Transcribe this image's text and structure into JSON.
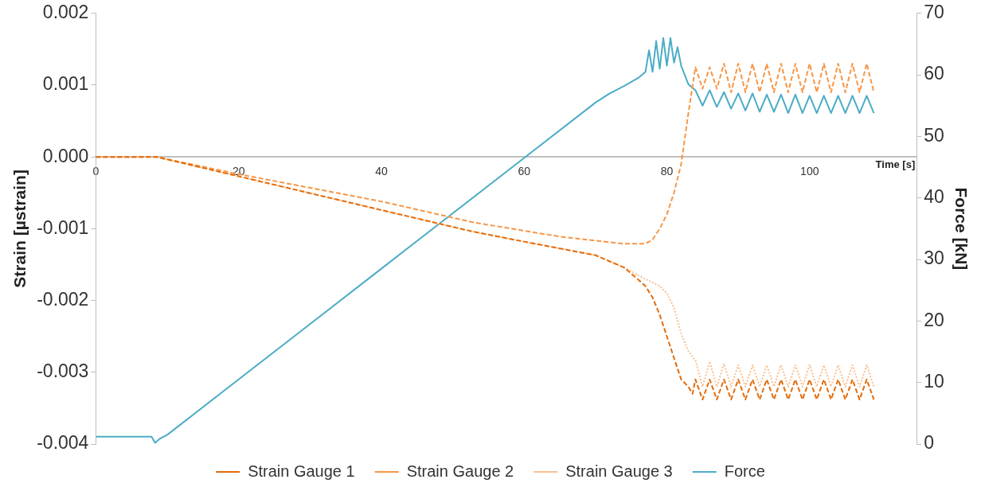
{
  "chart_data": {
    "type": "line",
    "xlabel": "Time [s]",
    "ylabel": "Strain [µstrain]",
    "y2label": "Force [kN]",
    "xlim": [
      0,
      115
    ],
    "xticks": [
      0,
      20,
      40,
      60,
      80,
      100
    ],
    "ylim": [
      -0.004,
      0.002
    ],
    "yticks": [
      -0.004,
      -0.003,
      -0.002,
      -0.001,
      {
        "value": 0,
        "label": "0.000"
      },
      0.001,
      0.002
    ],
    "y2lim": [
      0,
      70
    ],
    "y2ticks": [
      0,
      10,
      20,
      30,
      40,
      50,
      60,
      70
    ],
    "legend": "bottom",
    "grid": false,
    "marker": "none",
    "series": [
      {
        "name": "Strain Gauge 1",
        "color": "#e46c0a",
        "line_style": "dashed",
        "x": [
          0,
          7.5,
          8.5,
          20,
          40,
          52.8,
          60,
          70,
          74,
          76,
          77,
          78,
          79,
          80,
          81,
          82,
          83,
          83.6,
          84,
          85,
          86,
          87,
          88,
          89,
          90,
          91,
          92,
          93,
          94,
          95,
          96,
          97,
          98,
          99,
          100,
          101,
          102,
          103,
          104,
          105,
          106,
          107,
          108,
          109
        ],
        "values": [
          0,
          0,
          0,
          -0.00027,
          -0.00074,
          -0.00104,
          -0.00118,
          -0.00137,
          -0.00154,
          -0.00171,
          -0.0018,
          -0.00196,
          -0.0022,
          -0.0025,
          -0.0028,
          -0.0031,
          -0.0032,
          -0.0033,
          -0.0031,
          -0.00338,
          -0.0031,
          -0.00338,
          -0.0031,
          -0.00338,
          -0.0031,
          -0.00338,
          -0.0031,
          -0.00338,
          -0.0031,
          -0.00338,
          -0.0031,
          -0.00338,
          -0.0031,
          -0.00338,
          -0.0031,
          -0.00338,
          -0.0031,
          -0.00338,
          -0.0031,
          -0.00338,
          -0.0031,
          -0.00338,
          -0.0031,
          -0.00338
        ]
      },
      {
        "name": "Strain Gauge 2",
        "color": "#f79646",
        "line_style": "dashed",
        "x": [
          0,
          7.5,
          8.5,
          20,
          40,
          52.8,
          65,
          74,
          77,
          78,
          79,
          80,
          81,
          82,
          83,
          84,
          85,
          86,
          87,
          88,
          89,
          90,
          91,
          92,
          93,
          94,
          95,
          96,
          97,
          98,
          99,
          100,
          101,
          102,
          103,
          104,
          105,
          106,
          107,
          108,
          109
        ],
        "values": [
          0,
          0,
          0,
          -0.00024,
          -0.00062,
          -0.00091,
          -0.00111,
          -0.00121,
          -0.00121,
          -0.00115,
          -0.001,
          -0.0008,
          -0.0005,
          -0.0001,
          0.0006,
          0.00125,
          0.00095,
          0.00125,
          0.00095,
          0.0013,
          0.0009,
          0.0013,
          0.0009,
          0.0013,
          0.0009,
          0.0013,
          0.0009,
          0.0013,
          0.0009,
          0.0013,
          0.0009,
          0.0013,
          0.0009,
          0.0013,
          0.0009,
          0.0013,
          0.0009,
          0.0013,
          0.0009,
          0.0013,
          0.0009
        ]
      },
      {
        "name": "Strain Gauge 3",
        "color": "#fac090",
        "line_style": "dotted",
        "x": [
          0,
          7.5,
          8.5,
          20,
          40,
          52.8,
          60,
          70,
          74,
          76,
          77,
          78,
          79,
          80,
          81,
          82,
          83,
          83.7,
          84,
          85,
          86,
          87,
          88,
          89,
          90,
          91,
          92,
          93,
          94,
          95,
          96,
          97,
          98,
          99,
          100,
          101,
          102,
          103,
          104,
          105,
          106,
          107,
          108,
          109
        ],
        "values": [
          0,
          0,
          0,
          -0.00027,
          -0.00074,
          -0.00104,
          -0.00118,
          -0.00137,
          -0.00154,
          -0.00165,
          -0.0017,
          -0.00175,
          -0.0018,
          -0.0019,
          -0.0021,
          -0.00246,
          -0.0027,
          -0.0028,
          -0.00283,
          -0.0032,
          -0.00285,
          -0.0032,
          -0.00288,
          -0.0032,
          -0.0029,
          -0.0032,
          -0.0029,
          -0.0032,
          -0.0029,
          -0.0032,
          -0.0029,
          -0.0032,
          -0.0029,
          -0.0032,
          -0.0029,
          -0.0032,
          -0.0029,
          -0.0032,
          -0.0029,
          -0.0032,
          -0.0029,
          -0.0032,
          -0.0029,
          -0.0032
        ]
      },
      {
        "name": "Force",
        "color": "#4bacc6",
        "line_style": "solid",
        "axis": "y2",
        "x": [
          0,
          7.8,
          8.3,
          9,
          10,
          20,
          30,
          40,
          50,
          60,
          70,
          72,
          74,
          76,
          77,
          77.5,
          78,
          78.5,
          79,
          79.5,
          80,
          80.5,
          81,
          81.5,
          82,
          83,
          84,
          85,
          86,
          87,
          88,
          89,
          90,
          91,
          92,
          93,
          94,
          95,
          96,
          97,
          98,
          99,
          100,
          101,
          102,
          103,
          104,
          105,
          106,
          107,
          108,
          109
        ],
        "values": [
          1.2,
          1.2,
          0.2,
          0.9,
          1.5,
          10.5,
          19.5,
          28.5,
          37.5,
          46.5,
          55.5,
          57,
          58.2,
          59.5,
          60.5,
          64,
          60.5,
          65.5,
          61,
          66,
          61.5,
          66,
          62,
          64.5,
          61.5,
          58.5,
          57.5,
          55,
          57.5,
          54.8,
          57.2,
          54.5,
          57,
          54.2,
          57,
          54,
          56.8,
          54,
          56.8,
          53.8,
          56.8,
          53.8,
          56.6,
          53.8,
          56.6,
          53.8,
          56.6,
          53.8,
          56.6,
          53.8,
          56.6,
          53.8
        ]
      }
    ]
  }
}
